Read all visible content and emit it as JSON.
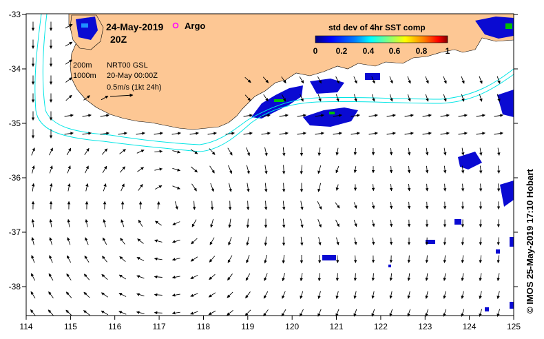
{
  "header": {
    "date": "24-May-2019",
    "time": "20Z",
    "argo_label": "Argo"
  },
  "legend": {
    "contour_200": "200m",
    "contour_1000": "1000m",
    "product": "NRT00 GSL",
    "product_date": "20-May 00:00Z",
    "scale": "0.5m/s (1kt 24h)"
  },
  "colorbar": {
    "title": "std dev of 4hr SST comp",
    "ticks": [
      "0",
      "0.2",
      "0.4",
      "0.6",
      "0.8",
      "1"
    ],
    "colors": [
      "#000080",
      "#0000ff",
      "#0080ff",
      "#00ffff",
      "#80ff80",
      "#ffff00",
      "#ff8000",
      "#ff0000",
      "#800000"
    ]
  },
  "axes": {
    "x_ticks": [
      "114",
      "115",
      "116",
      "117",
      "118",
      "119",
      "120",
      "121",
      "122",
      "123",
      "124",
      "125"
    ],
    "y_ticks": [
      "-33",
      "-34",
      "-35",
      "-36",
      "-37",
      "-38"
    ]
  },
  "credit": "© IMOS 25-May-2019 17:10 Hobart",
  "colors": {
    "land": "#fdc794",
    "isobath": "#00e5e5",
    "sst_low": "#0a0ad2",
    "sst_mid": "#1e90ff",
    "sst_high": "#00c000"
  }
}
